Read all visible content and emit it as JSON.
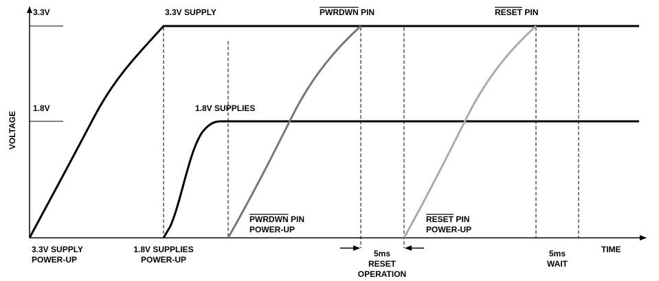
{
  "axes": {
    "y_label": "VOLTAGE",
    "x_label": "TIME",
    "levels": [
      "3.3V",
      "1.8V"
    ]
  },
  "curves": {
    "supply_3v3": {
      "label": "3.3V SUPPLY",
      "event": [
        "3.3V SUPPLY",
        "POWER-UP"
      ]
    },
    "supply_1v8": {
      "label": "1.8V SUPPLIES",
      "event": [
        "1.8V SUPPLIES",
        "POWER-UP"
      ]
    },
    "pwrdwn": {
      "label": [
        "PWRDWN",
        " PIN"
      ],
      "event": [
        [
          "PWRDWN",
          " PIN"
        ],
        "POWER-UP"
      ]
    },
    "reset": {
      "label": [
        "RESET",
        " PIN"
      ],
      "event": [
        [
          "RESET",
          " PIN"
        ],
        "POWER-UP"
      ]
    }
  },
  "intervals": {
    "reset_operation": [
      "5ms",
      "RESET",
      "OPERATION"
    ],
    "wait": [
      "5ms",
      "WAIT"
    ]
  }
}
